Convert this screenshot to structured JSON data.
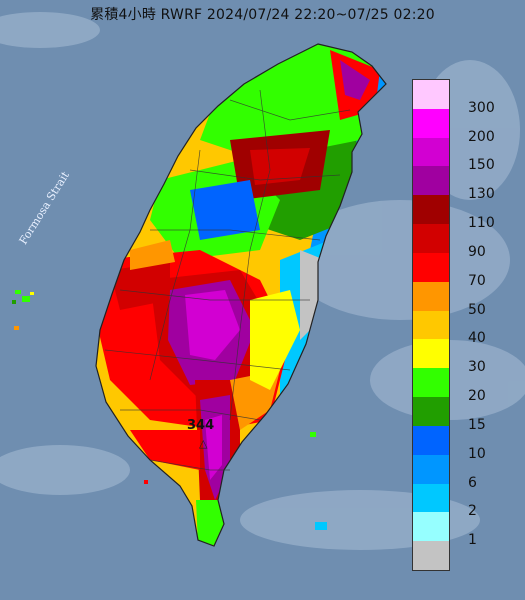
{
  "title": "累積4小時 RWRF 2024/07/24 22:20~07/25 02:20",
  "map": {
    "strait_label": "Formosa Strait",
    "max_value_label": "344"
  },
  "legend": {
    "items": [
      {
        "label": "300",
        "color": "#ffc8ff"
      },
      {
        "label": "200",
        "color": "#ff00ff"
      },
      {
        "label": "150",
        "color": "#d200d2"
      },
      {
        "label": "130",
        "color": "#a000a0"
      },
      {
        "label": "110",
        "color": "#a00000"
      },
      {
        "label": "90",
        "color": "#d20000"
      },
      {
        "label": "70",
        "color": "#ff0000"
      },
      {
        "label": "50",
        "color": "#ff9600"
      },
      {
        "label": "40",
        "color": "#ffc800"
      },
      {
        "label": "30",
        "color": "#ffff00"
      },
      {
        "label": "20",
        "color": "#32ff00"
      },
      {
        "label": "15",
        "color": "#219e00"
      },
      {
        "label": "10",
        "color": "#0064ff"
      },
      {
        "label": "6",
        "color": "#0096ff"
      },
      {
        "label": "2",
        "color": "#00c8ff"
      },
      {
        "label": "1",
        "color": "#96ffff"
      },
      {
        "label": "",
        "color": "#c3c3c3"
      }
    ]
  }
}
